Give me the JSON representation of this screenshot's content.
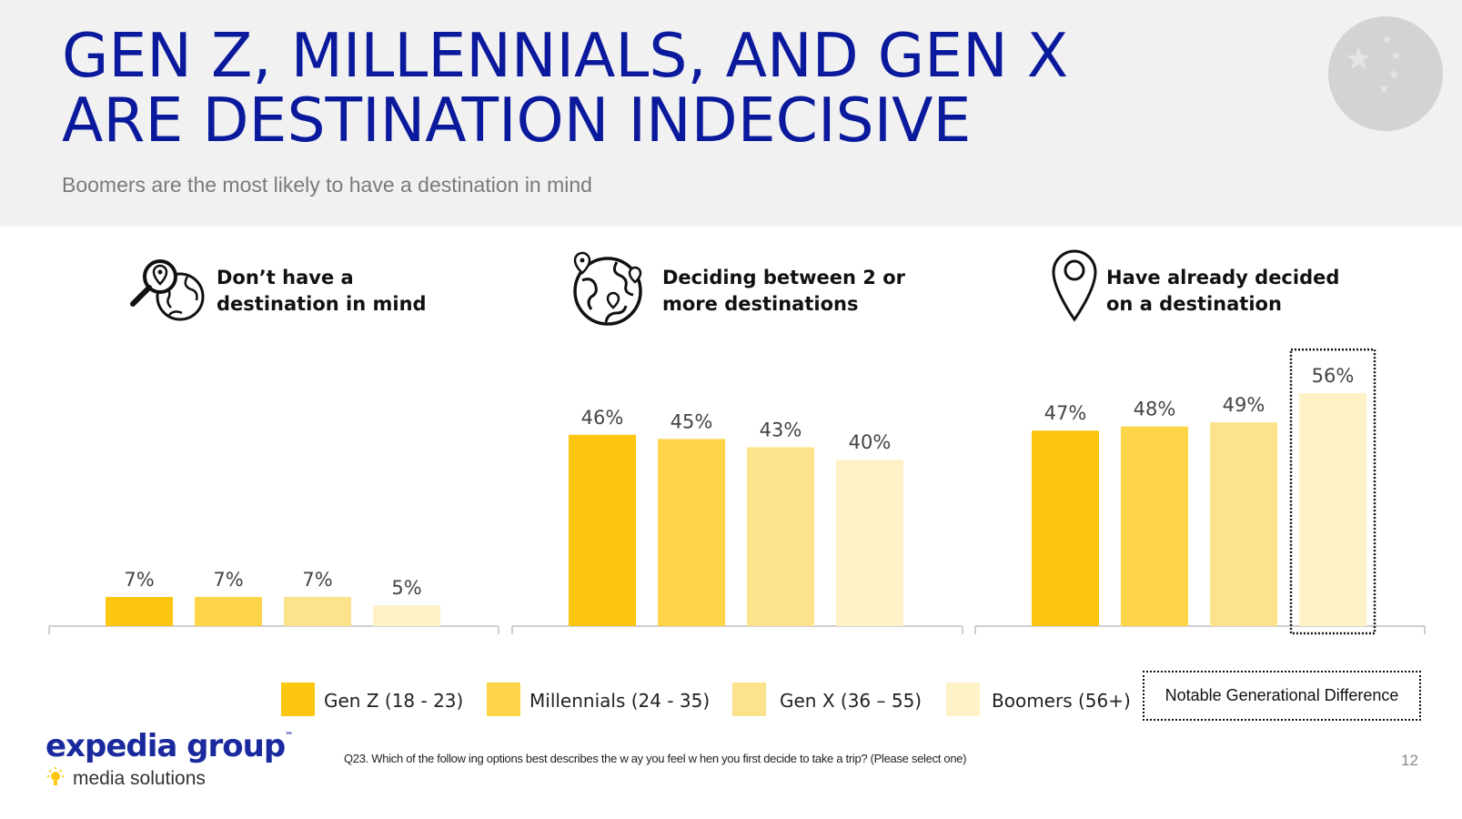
{
  "title": {
    "line1": "GEN Z, MILLENNIALS, AND GEN X",
    "line2": "ARE DESTINATION INDECISIVE"
  },
  "subtitle": "Boomers are the most likely to have a destination in mind",
  "panels": [
    {
      "label_line1": "Don’t have a",
      "label_line2": "destination in mind",
      "icon": "magnifier-globe-icon"
    },
    {
      "label_line1": "Deciding between 2 or",
      "label_line2": "more destinations",
      "icon": "globe-pins-icon"
    },
    {
      "label_line1": "Have already decided",
      "label_line2": "on a destination",
      "icon": "location-pin-icon"
    }
  ],
  "chart_data": {
    "type": "bar",
    "title": "GEN Z, MILLENNIALS, AND GEN X ARE DESTINATION INDECISIVE",
    "groups": [
      "Don’t have a destination in mind",
      "Deciding between 2 or more destinations",
      "Have already decided on a destination"
    ],
    "series": [
      {
        "name": "Gen Z (18 - 23)",
        "color": "#fdc611",
        "values": [
          7,
          46,
          47
        ],
        "labels": [
          "7%",
          "46%",
          "47%"
        ]
      },
      {
        "name": "Millennials (24 - 35)",
        "color": "#fed548",
        "values": [
          7,
          45,
          48
        ],
        "labels": [
          "7%",
          "45%",
          "48%"
        ]
      },
      {
        "name": "Gen X (36 – 55)",
        "color": "#fde28c",
        "values": [
          7,
          43,
          49
        ],
        "labels": [
          "7%",
          "43%",
          "49%"
        ]
      },
      {
        "name": "Boomers (56+)",
        "color": "#fff2c6",
        "values": [
          5,
          40,
          56
        ],
        "labels": [
          "5%",
          "40%",
          "56%"
        ]
      }
    ],
    "ylim": [
      0,
      60
    ],
    "unit": "%",
    "highlight": {
      "group": 2,
      "series": 3,
      "note": "Notable Generational Difference"
    },
    "xlabel": "",
    "ylabel": ""
  },
  "legend": {
    "items": [
      "Gen Z (18 - 23)",
      "Millennials (24 - 35)",
      "Gen X (36 – 55)",
      "Boomers (56+)"
    ],
    "notable": "Notable Generational Difference"
  },
  "logo": {
    "main": "expedia group",
    "tm": "™",
    "sub": "media solutions"
  },
  "footnote": "Q23. Which of the follow ing options best describes the w ay you feel w hen you first decide to take a trip? (Please select one)",
  "page_number": "12",
  "colors": {
    "title": "#0b1a9c",
    "logo": "#1a2a9e",
    "header_bg": "#f1f1f1"
  }
}
